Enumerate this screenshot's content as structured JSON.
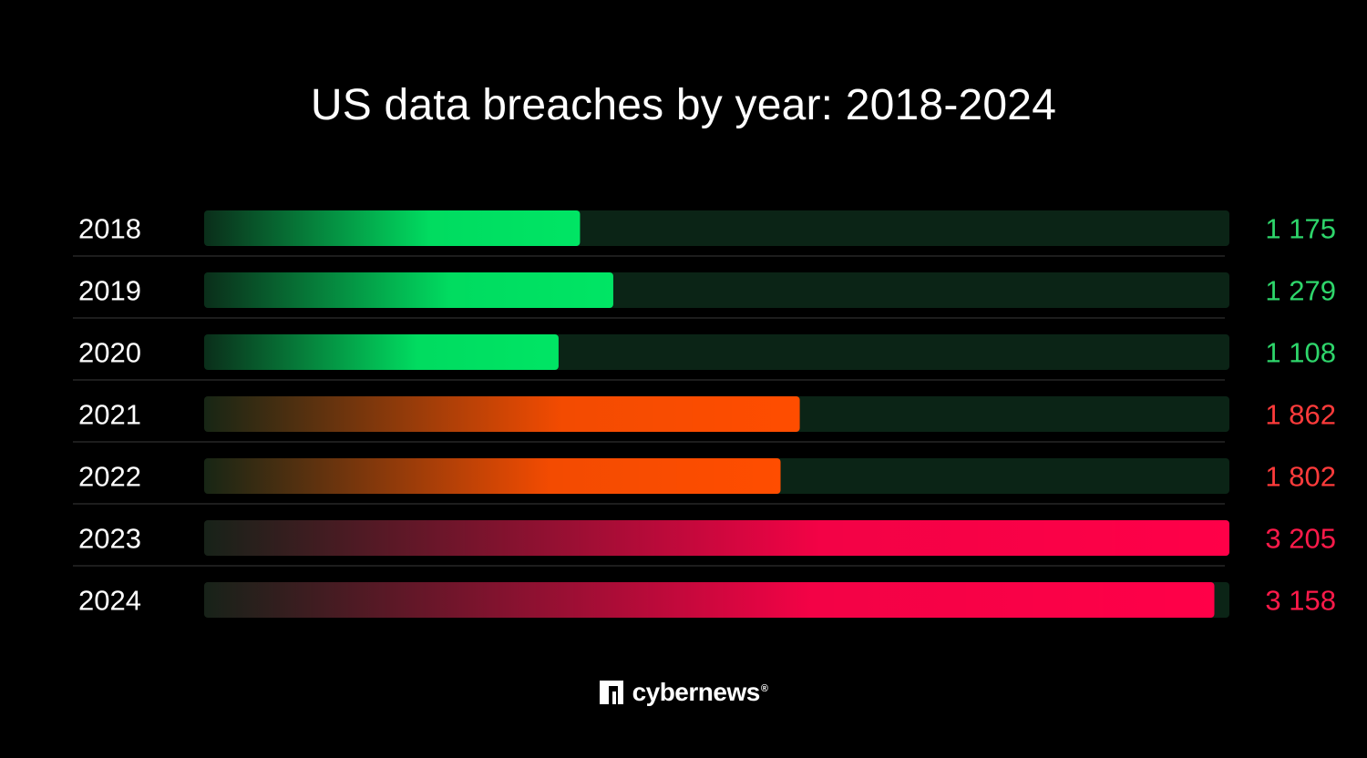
{
  "chart_data": {
    "type": "bar",
    "orientation": "horizontal",
    "title": "US data breaches by year: 2018-2024",
    "categories": [
      "2018",
      "2019",
      "2020",
      "2021",
      "2022",
      "2023",
      "2024"
    ],
    "values": [
      1175,
      1279,
      1108,
      1862,
      1802,
      3205,
      3158
    ],
    "value_labels": [
      "1 175",
      "1 279",
      "1 108",
      "1 862",
      "1 802",
      "3 205",
      "3 158"
    ],
    "xlim": [
      0,
      3205
    ],
    "grid": false,
    "legend": "none",
    "bar_colors": [
      "#00e564",
      "#00e564",
      "#00e564",
      "#ff4d00",
      "#ff4d00",
      "#ff0048",
      "#ff0048"
    ],
    "value_label_colors": [
      "#2ed66b",
      "#2ed66b",
      "#2ed66b",
      "#ff3b3b",
      "#ff3b3b",
      "#ff1a4a",
      "#ff1a4a"
    ]
  },
  "colors": {
    "background": "#000000",
    "track": "#0b2416",
    "separator": "#3a3a3a",
    "text": "#ffffff"
  },
  "branding": {
    "logo_text": "cybernews",
    "logo_mark": "®"
  }
}
